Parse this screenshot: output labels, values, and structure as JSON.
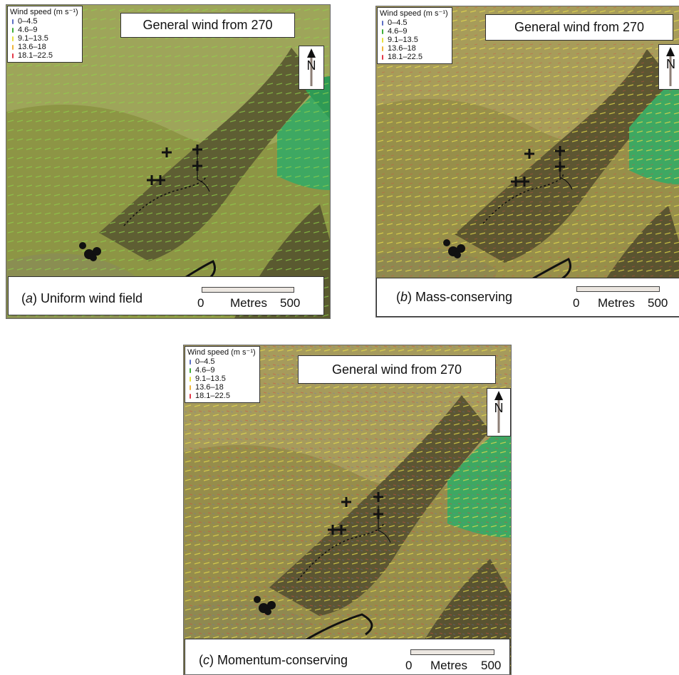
{
  "legend": {
    "title": "Wind speed (m s⁻¹)",
    "classes": [
      {
        "label": "0–4.5",
        "color": "#5d6fc4"
      },
      {
        "label": "4.6–9",
        "color": "#3fae3a"
      },
      {
        "label": "9.1–13.5",
        "color": "#e7e23c"
      },
      {
        "label": "13.6–18",
        "color": "#f0b63a"
      },
      {
        "label": "18.1–22.5",
        "color": "#e43a4a"
      }
    ]
  },
  "wind_title": "General wind from 270",
  "north_label": "N",
  "scale": {
    "start": "0",
    "unit": "Metres",
    "end": "500"
  },
  "panels": [
    {
      "letter": "a",
      "caption": "Uniform wind field"
    },
    {
      "letter": "b",
      "caption": "Mass-conserving"
    },
    {
      "letter": "c",
      "caption": "Momentum-conserving"
    }
  ]
}
